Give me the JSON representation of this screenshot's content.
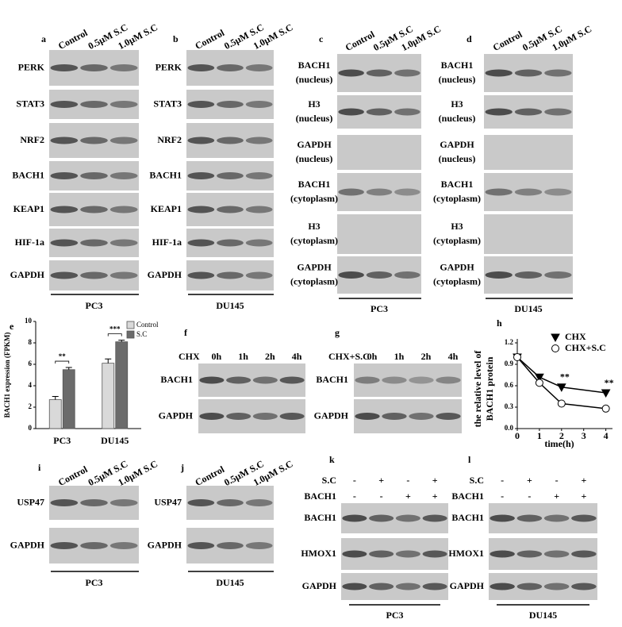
{
  "blots": {
    "a": {
      "label": "a",
      "lanes": [
        "Control",
        "0.5μM S.C",
        "1.0μM S.C"
      ],
      "rows": [
        "PERK",
        "STAT3",
        "NRF2",
        "BACH1",
        "KEAP1",
        "HIF-1a",
        "GAPDH"
      ],
      "cell_line": "PC3"
    },
    "b": {
      "label": "b",
      "lanes": [
        "Control",
        "0.5μM S.C",
        "1.0μM S.C"
      ],
      "rows": [
        "PERK",
        "STAT3",
        "NRF2",
        "BACH1",
        "KEAP1",
        "HIF-1a",
        "GAPDH"
      ],
      "cell_line": "DU145"
    },
    "c": {
      "label": "c",
      "lanes": [
        "Control",
        "0.5μM S.C",
        "1.0μM S.C"
      ],
      "rows": [
        [
          "BACH1",
          "(nucleus)"
        ],
        [
          "H3",
          "(nucleus)"
        ],
        [
          "GAPDH",
          "(nucleus)"
        ],
        [
          "BACH1",
          "(cytoplasm)"
        ],
        [
          "H3",
          "(cytoplasm)"
        ],
        [
          "GAPDH",
          "(cytoplasm)"
        ]
      ],
      "cell_line": "PC3"
    },
    "d": {
      "label": "d",
      "lanes": [
        "Control",
        "0.5μM S.C",
        "1.0μM S.C"
      ],
      "rows": [
        [
          "BACH1",
          "(nucleus)"
        ],
        [
          "H3",
          "(nucleus)"
        ],
        [
          "GAPDH",
          "(nucleus)"
        ],
        [
          "BACH1",
          "(cytoplasm)"
        ],
        [
          "H3",
          "(cytoplasm)"
        ],
        [
          "GAPDH",
          "(cytoplasm)"
        ]
      ],
      "cell_line": "DU145"
    },
    "f": {
      "label": "f",
      "treatment": "CHX",
      "times": [
        "0h",
        "1h",
        "2h",
        "4h"
      ],
      "rows": [
        "BACH1",
        "GAPDH"
      ]
    },
    "g": {
      "label": "g",
      "treatment": "CHX+S.C",
      "times": [
        "0h",
        "1h",
        "2h",
        "4h"
      ],
      "rows": [
        "BACH1",
        "GAPDH"
      ]
    },
    "i": {
      "label": "i",
      "lanes": [
        "Control",
        "0.5μM S.C",
        "1.0μM S.C"
      ],
      "rows": [
        "USP47",
        "GAPDH"
      ],
      "cell_line": "PC3"
    },
    "j": {
      "label": "j",
      "lanes": [
        "Control",
        "0.5μM S.C",
        "1.0μM S.C"
      ],
      "rows": [
        "USP47",
        "GAPDH"
      ],
      "cell_line": "DU145"
    },
    "k": {
      "label": "k",
      "conditions": [
        {
          "name": "S.C",
          "signs": [
            "-",
            "+",
            "-",
            "+"
          ]
        },
        {
          "name": "BACH1",
          "signs": [
            "-",
            "-",
            "+",
            "+"
          ]
        }
      ],
      "rows": [
        "BACH1",
        "HMOX1",
        "GAPDH"
      ],
      "cell_line": "PC3"
    },
    "l": {
      "label": "l",
      "conditions": [
        {
          "name": "S.C",
          "signs": [
            "-",
            "+",
            "-",
            "+"
          ]
        },
        {
          "name": "BACH1",
          "signs": [
            "-",
            "-",
            "+",
            "+"
          ]
        }
      ],
      "rows": [
        "BACH1",
        "HMOX1",
        "GAPDH"
      ],
      "cell_line": "DU145"
    }
  },
  "chart_data": [
    {
      "panel": "e",
      "type": "bar",
      "y_label": "BACH1 expression (FPKM)",
      "categories": [
        "PC3",
        "DU145"
      ],
      "series": [
        {
          "name": "Control",
          "color": "#d9d9d9",
          "values": [
            2.7,
            6.1
          ],
          "errors": [
            0.3,
            0.4
          ]
        },
        {
          "name": "S.C",
          "color": "#6b6b6b",
          "values": [
            5.5,
            8.1
          ],
          "errors": [
            0.2,
            0.15
          ]
        }
      ],
      "ylim": [
        0,
        10
      ],
      "yticks": [
        0,
        2,
        4,
        6,
        8,
        10
      ],
      "significance": [
        "**",
        "***"
      ]
    },
    {
      "panel": "h",
      "type": "line",
      "y_label": [
        "the relative level of",
        "BACH1 protein"
      ],
      "x_label": "time(h)",
      "series": [
        {
          "name": "CHX",
          "color": "#000000",
          "marker": "triangle-filled",
          "x": [
            0,
            1,
            2,
            4
          ],
          "values": [
            1.0,
            0.72,
            0.58,
            0.5
          ]
        },
        {
          "name": "CHX+S.C",
          "color": "#000000",
          "marker": "circle-open",
          "x": [
            0,
            1,
            2,
            4
          ],
          "values": [
            1.0,
            0.64,
            0.35,
            0.28
          ]
        }
      ],
      "xlim": [
        0,
        4.3
      ],
      "ylim": [
        0,
        1.2
      ],
      "xticks": [
        0,
        1,
        2,
        3,
        4
      ],
      "yticks": [
        {
          "value": 0,
          "label": "0.0"
        },
        0.3,
        0.6,
        0.9,
        1.2
      ],
      "annotations": [
        "**",
        "**"
      ]
    }
  ]
}
